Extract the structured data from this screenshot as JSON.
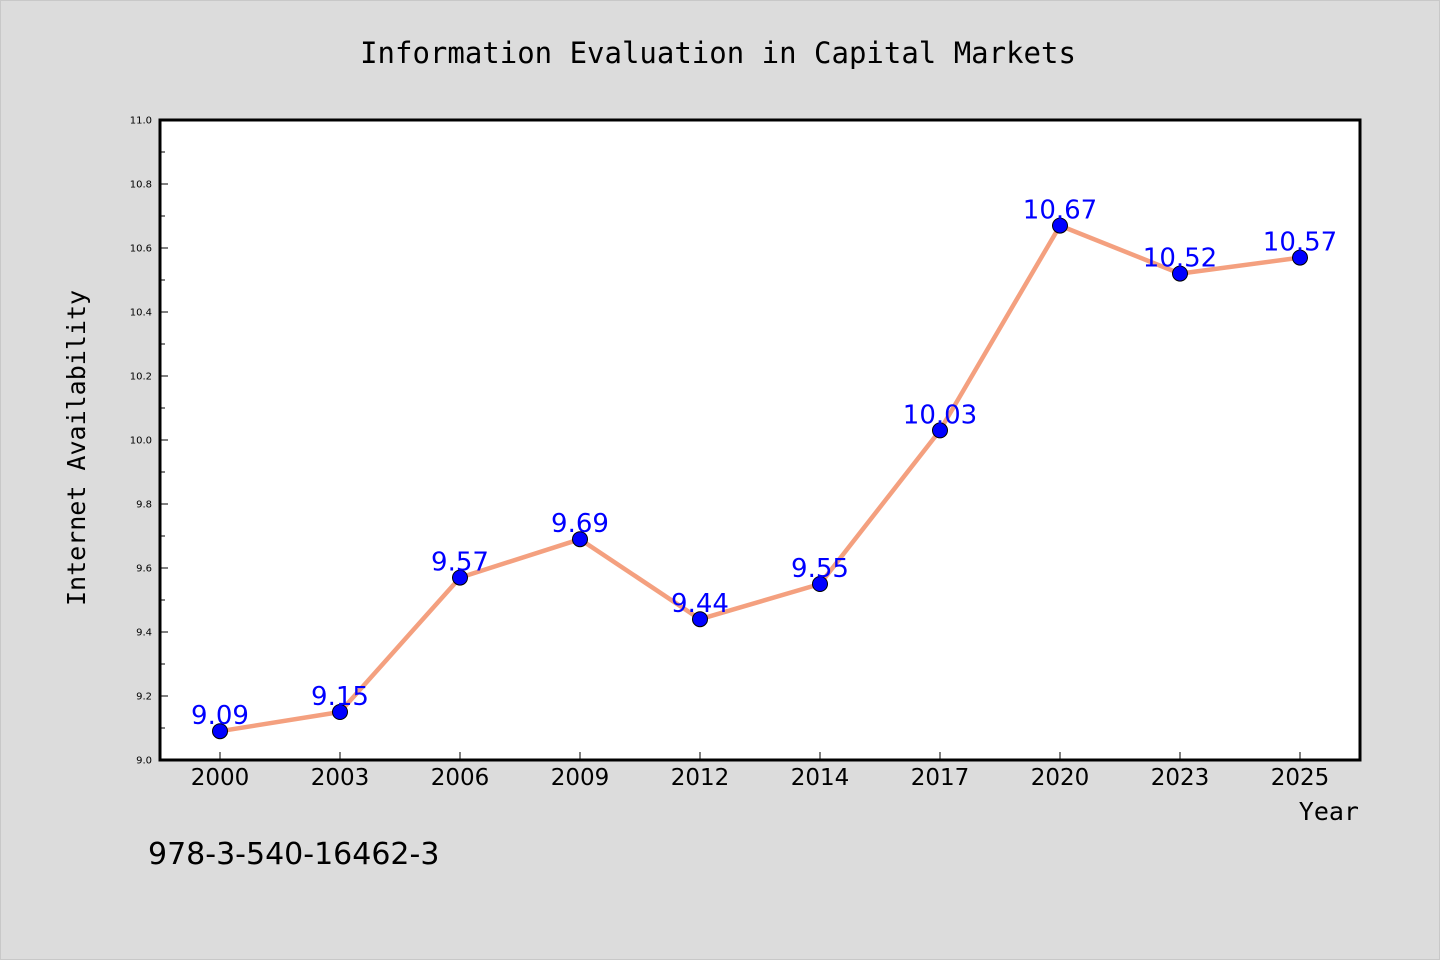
{
  "chart_data": {
    "type": "line",
    "title": "Information Evaluation in Capital Markets",
    "xlabel": "Year",
    "ylabel": "Internet Availability",
    "categories": [
      "2000",
      "2003",
      "2006",
      "2009",
      "2012",
      "2014",
      "2017",
      "2020",
      "2023",
      "2025"
    ],
    "series": [
      {
        "values": [
          9.09,
          9.15,
          9.57,
          9.69,
          9.44,
          9.55,
          10.03,
          10.67,
          10.52,
          10.57
        ],
        "labels": [
          "9.09",
          "9.15",
          "9.57",
          "9.69",
          "9.44",
          "9.55",
          "10.03",
          "10.67",
          "10.52",
          "10.57"
        ],
        "line_color": "#f4a07f",
        "marker_color": "#0000ff",
        "label_color": "#0000ff"
      }
    ],
    "ylim": [
      9.0,
      11.0
    ],
    "yticks": [
      "9.0",
      "9.2",
      "9.4",
      "9.6",
      "9.8",
      "10.0",
      "10.2",
      "10.4",
      "10.6",
      "10.8",
      "11.0"
    ],
    "grid": false,
    "legend": "none"
  },
  "annotation": "978-3-540-16462-3",
  "colors": {
    "background": "#dcdcdc",
    "plot_background": "#ffffff",
    "axis": "#000000",
    "text": "#000000"
  }
}
